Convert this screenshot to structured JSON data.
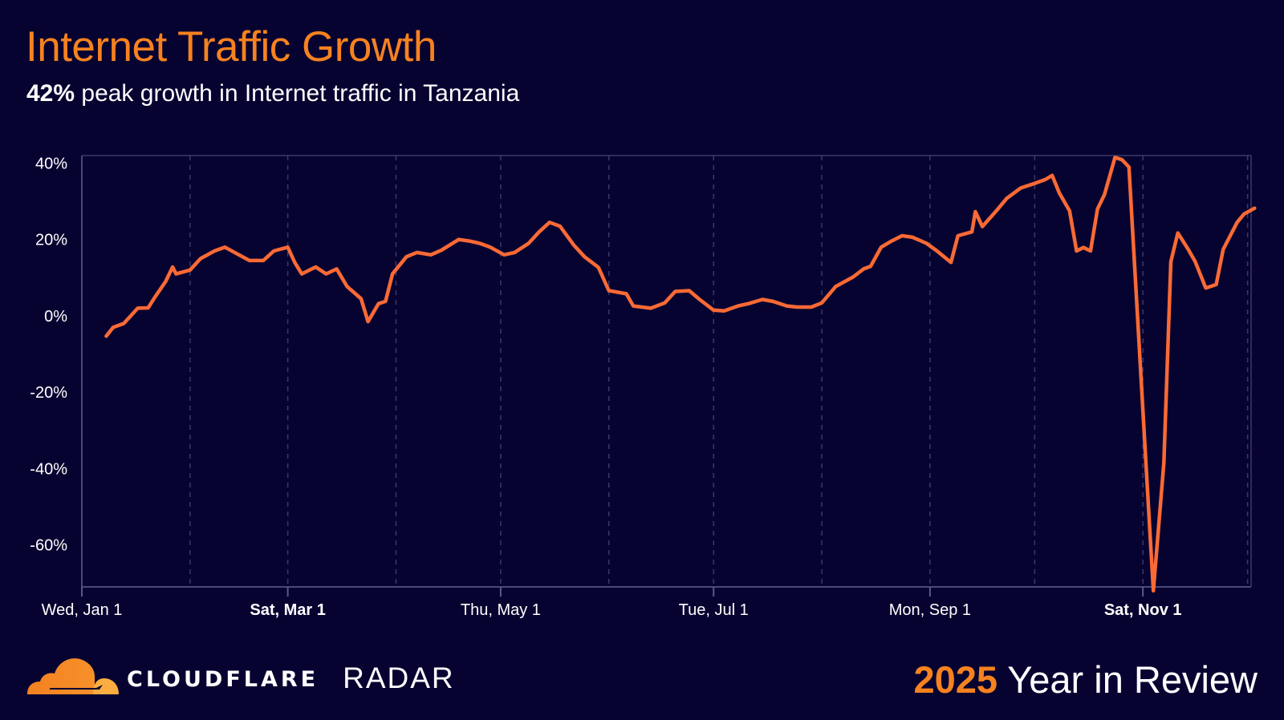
{
  "header": {
    "title": "Internet Traffic Growth",
    "subtitle_highlight": "42%",
    "subtitle_rest": " peak growth in Internet traffic in Tanzania"
  },
  "footer": {
    "brand": "CLOUDFLARE",
    "product": "RADAR",
    "year": "2025",
    "tagline": " Year in Review"
  },
  "colors": {
    "background": "#070331",
    "line": "#fa6a35",
    "accent": "#f6821f",
    "grid": "#3a3868"
  },
  "chart_data": {
    "type": "line",
    "title": "",
    "xlabel": "",
    "ylabel": "",
    "xlim": [
      "2025-01-01",
      "2025-12-02"
    ],
    "ylim": [
      -71,
      42
    ],
    "grid": "vertical dashed monthly",
    "yticks": [
      {
        "value": 40,
        "label": "40%"
      },
      {
        "value": 20,
        "label": "20%"
      },
      {
        "value": 0,
        "label": "0%"
      },
      {
        "value": -20,
        "label": "-20%"
      },
      {
        "value": -40,
        "label": "-40%"
      },
      {
        "value": -60,
        "label": "-60%"
      }
    ],
    "xticks": [
      {
        "date": "2025-01-01",
        "label": "Wed, Jan 1",
        "bold": false
      },
      {
        "date": "2025-03-01",
        "label": "Sat, Mar 1",
        "bold": true
      },
      {
        "date": "2025-05-01",
        "label": "Thu, May 1",
        "bold": false
      },
      {
        "date": "2025-07-01",
        "label": "Tue, Jul 1",
        "bold": false
      },
      {
        "date": "2025-09-01",
        "label": "Mon, Sep 1",
        "bold": false
      },
      {
        "date": "2025-11-01",
        "label": "Sat, Nov 1",
        "bold": true
      }
    ],
    "gridlines": [
      "2025-02-01",
      "2025-03-01",
      "2025-04-01",
      "2025-05-01",
      "2025-06-01",
      "2025-07-01",
      "2025-08-01",
      "2025-09-01",
      "2025-10-01",
      "2025-11-01",
      "2025-12-01"
    ],
    "series": [
      {
        "points": [
          [
            "2025-01-08",
            -5.3
          ],
          [
            "2025-01-10",
            -3
          ],
          [
            "2025-01-13",
            -2
          ],
          [
            "2025-01-15",
            0
          ],
          [
            "2025-01-17",
            2
          ],
          [
            "2025-01-20",
            2.1
          ],
          [
            "2025-01-22",
            5
          ],
          [
            "2025-01-25",
            9
          ],
          [
            "2025-01-27",
            12.8
          ],
          [
            "2025-01-28",
            11
          ],
          [
            "2025-02-01",
            12
          ],
          [
            "2025-02-04",
            15
          ],
          [
            "2025-02-08",
            17
          ],
          [
            "2025-02-11",
            18
          ],
          [
            "2025-02-15",
            16
          ],
          [
            "2025-02-18",
            14.5
          ],
          [
            "2025-02-22",
            14.5
          ],
          [
            "2025-02-25",
            17
          ],
          [
            "2025-03-01",
            18
          ],
          [
            "2025-03-03",
            14
          ],
          [
            "2025-03-05",
            11
          ],
          [
            "2025-03-09",
            12.8
          ],
          [
            "2025-03-12",
            11
          ],
          [
            "2025-03-15",
            12.3
          ],
          [
            "2025-03-18",
            7.7
          ],
          [
            "2025-03-22",
            4.5
          ],
          [
            "2025-03-24",
            -1.5
          ],
          [
            "2025-03-27",
            3.2
          ],
          [
            "2025-03-29",
            3.8
          ],
          [
            "2025-03-31",
            11
          ],
          [
            "2025-04-04",
            15.5
          ],
          [
            "2025-04-07",
            16.6
          ],
          [
            "2025-04-11",
            16
          ],
          [
            "2025-04-14",
            17.2
          ],
          [
            "2025-04-19",
            20
          ],
          [
            "2025-04-22",
            19.6
          ],
          [
            "2025-04-25",
            19
          ],
          [
            "2025-04-28",
            18
          ],
          [
            "2025-05-02",
            16
          ],
          [
            "2025-05-05",
            16.6
          ],
          [
            "2025-05-09",
            19
          ],
          [
            "2025-05-12",
            22
          ],
          [
            "2025-05-15",
            24.5
          ],
          [
            "2025-05-18",
            23.5
          ],
          [
            "2025-05-22",
            18.5
          ],
          [
            "2025-05-25",
            15.5
          ],
          [
            "2025-05-29",
            12.7
          ],
          [
            "2025-06-01",
            6.6
          ],
          [
            "2025-06-06",
            5.8
          ],
          [
            "2025-06-08",
            2.6
          ],
          [
            "2025-06-13",
            2
          ],
          [
            "2025-06-17",
            3.4
          ],
          [
            "2025-06-20",
            6.4
          ],
          [
            "2025-06-24",
            6.6
          ],
          [
            "2025-06-27",
            4.3
          ],
          [
            "2025-07-01",
            1.5
          ],
          [
            "2025-07-04",
            1.3
          ],
          [
            "2025-07-08",
            2.6
          ],
          [
            "2025-07-11",
            3.2
          ],
          [
            "2025-07-15",
            4.3
          ],
          [
            "2025-07-18",
            3.8
          ],
          [
            "2025-07-22",
            2.6
          ],
          [
            "2025-07-25",
            2.3
          ],
          [
            "2025-07-29",
            2.3
          ],
          [
            "2025-08-01",
            3.4
          ],
          [
            "2025-08-05",
            7.7
          ],
          [
            "2025-08-10",
            10.2
          ],
          [
            "2025-08-13",
            12.3
          ],
          [
            "2025-08-15",
            13
          ],
          [
            "2025-08-18",
            18
          ],
          [
            "2025-08-21",
            19.6
          ],
          [
            "2025-08-24",
            21
          ],
          [
            "2025-08-27",
            20.6
          ],
          [
            "2025-08-31",
            19
          ],
          [
            "2025-09-03",
            17
          ],
          [
            "2025-09-07",
            14
          ],
          [
            "2025-09-09",
            21
          ],
          [
            "2025-09-13",
            22
          ],
          [
            "2025-09-14",
            27.3
          ],
          [
            "2025-09-16",
            23.4
          ],
          [
            "2025-09-20",
            27.5
          ],
          [
            "2025-09-23",
            30.8
          ],
          [
            "2025-09-27",
            33.5
          ],
          [
            "2025-09-30",
            34.4
          ],
          [
            "2025-10-04",
            35.7
          ],
          [
            "2025-10-06",
            36.8
          ],
          [
            "2025-10-08",
            32.3
          ],
          [
            "2025-10-11",
            27.5
          ],
          [
            "2025-10-13",
            17
          ],
          [
            "2025-10-15",
            17.9
          ],
          [
            "2025-10-17",
            17
          ],
          [
            "2025-10-19",
            28
          ],
          [
            "2025-10-21",
            31.8
          ],
          [
            "2025-10-24",
            41.5
          ],
          [
            "2025-10-26",
            40.9
          ],
          [
            "2025-10-28",
            39
          ],
          [
            "2025-11-02",
            -40.6
          ],
          [
            "2025-11-04",
            -72
          ],
          [
            "2025-11-07",
            -38.5
          ],
          [
            "2025-11-09",
            14.2
          ],
          [
            "2025-11-11",
            21.7
          ],
          [
            "2025-11-14",
            17.4
          ],
          [
            "2025-11-16",
            14.2
          ],
          [
            "2025-11-19",
            7.3
          ],
          [
            "2025-11-22",
            8.2
          ],
          [
            "2025-11-24",
            17.4
          ],
          [
            "2025-11-28",
            24.5
          ],
          [
            "2025-11-30",
            26.7
          ],
          [
            "2025-12-03",
            28.2
          ]
        ]
      }
    ]
  }
}
